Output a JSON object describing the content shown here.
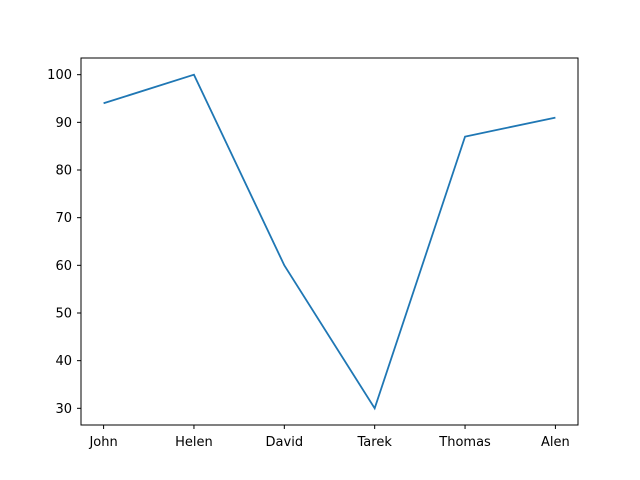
{
  "chart_data": {
    "type": "line",
    "categories": [
      "John",
      "Helen",
      "David",
      "Tarek",
      "Thomas",
      "Alen"
    ],
    "series": [
      {
        "values": [
          94,
          100,
          60,
          30,
          87,
          91
        ]
      }
    ],
    "ylim": [
      26.5,
      103.5
    ],
    "yticks": [
      30,
      40,
      50,
      60,
      70,
      80,
      90,
      100
    ],
    "grid": false,
    "line_color": "#1f77b4",
    "axis_color": "#000000",
    "background": "#ffffff"
  }
}
